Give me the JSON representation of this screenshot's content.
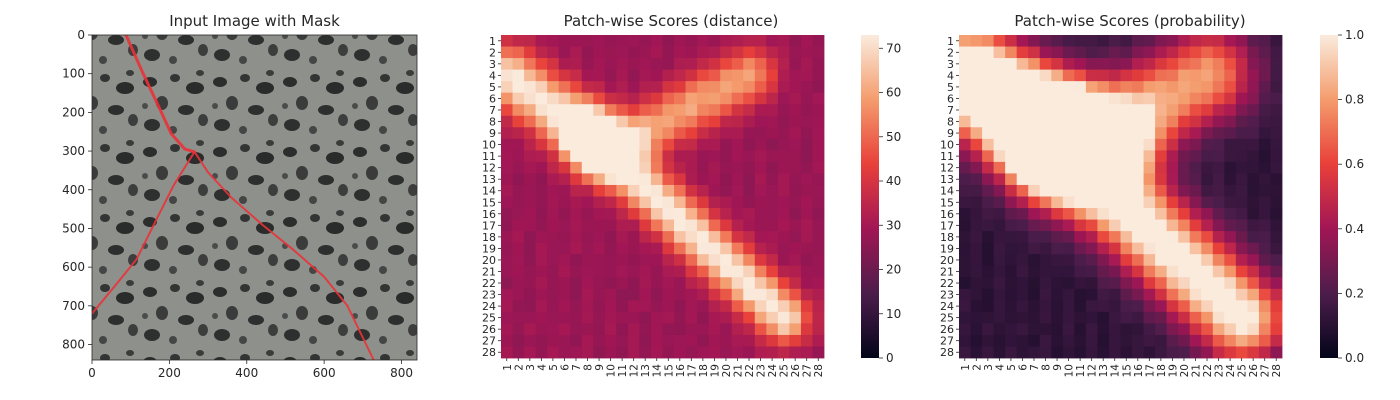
{
  "chart_data": [
    {
      "type": "image",
      "title": "Input Image with Mask",
      "x_ticks": [
        0,
        200,
        400,
        600,
        800
      ],
      "y_ticks": [
        0,
        100,
        200,
        300,
        400,
        500,
        600,
        700,
        800
      ],
      "extent": [
        840,
        840
      ],
      "crack_mask_color": "#e8333a",
      "crack_paths": [
        [
          [
            88,
            0
          ],
          [
            130,
            95
          ],
          [
            170,
            180
          ],
          [
            205,
            255
          ],
          [
            240,
            295
          ],
          [
            265,
            302
          ]
        ],
        [
          [
            265,
            302
          ],
          [
            210,
            390
          ],
          [
            160,
            490
          ],
          [
            115,
            580
          ],
          [
            50,
            660
          ],
          [
            0,
            720
          ]
        ],
        [
          [
            265,
            302
          ],
          [
            300,
            355
          ],
          [
            360,
            420
          ],
          [
            440,
            490
          ],
          [
            520,
            555
          ],
          [
            600,
            625
          ],
          [
            660,
            700
          ],
          [
            728,
            840
          ]
        ]
      ]
    },
    {
      "type": "heatmap",
      "title": "Patch-wise Scores (distance)",
      "x_ticks": [
        "1",
        "2",
        "3",
        "4",
        "5",
        "6",
        "7",
        "8",
        "9",
        "10",
        "11",
        "12",
        "13",
        "14",
        "15",
        "16",
        "17",
        "18",
        "19",
        "20",
        "21",
        "22",
        "23",
        "24",
        "25",
        "26",
        "27",
        "28"
      ],
      "y_ticks": [
        "1",
        "2",
        "3",
        "4",
        "5",
        "6",
        "7",
        "8",
        "9",
        "10",
        "11",
        "12",
        "13",
        "14",
        "15",
        "16",
        "17",
        "18",
        "19",
        "20",
        "21",
        "22",
        "23",
        "24",
        "25",
        "26",
        "27",
        "28"
      ],
      "colorbar": {
        "min": 0,
        "max": 73,
        "ticks": [
          0,
          10,
          20,
          30,
          40,
          50,
          60,
          70
        ]
      },
      "colormap": "rocket",
      "base_value": 28,
      "features": [
        {
          "from": [
            1,
            4
          ],
          "to": [
            8,
            9
          ],
          "peak": 45,
          "width": 1.8
        },
        {
          "from": [
            8,
            9
          ],
          "to": [
            25,
            25
          ],
          "peak": 46,
          "width": 1.5
        },
        {
          "from": [
            9,
            11
          ],
          "to": [
            22,
            4
          ],
          "peak": 32,
          "width": 1.6
        },
        {
          "from": [
            9,
            10
          ],
          "to": [
            12,
            10
          ],
          "peak": 10,
          "width": 1.2
        }
      ]
    },
    {
      "type": "heatmap",
      "title": "Patch-wise Scores (probability)",
      "x_ticks": [
        "1",
        "2",
        "3",
        "4",
        "5",
        "6",
        "7",
        "8",
        "9",
        "10",
        "11",
        "12",
        "13",
        "14",
        "15",
        "16",
        "17",
        "18",
        "19",
        "20",
        "21",
        "22",
        "23",
        "24",
        "25",
        "26",
        "27",
        "28"
      ],
      "y_ticks": [
        "1",
        "2",
        "3",
        "4",
        "5",
        "6",
        "7",
        "8",
        "9",
        "10",
        "11",
        "12",
        "13",
        "14",
        "15",
        "16",
        "17",
        "18",
        "19",
        "20",
        "21",
        "22",
        "23",
        "24",
        "25",
        "26",
        "27",
        "28"
      ],
      "colorbar": {
        "min": 0.0,
        "max": 1.0,
        "ticks": [
          "0.0",
          "0.2",
          "0.4",
          "0.6",
          "0.8",
          "1.0"
        ]
      },
      "colormap": "rocket",
      "base_value": 0.12,
      "features": [
        {
          "from": [
            1,
            4
          ],
          "to": [
            8,
            9
          ],
          "peak": 0.95,
          "width": 3.0
        },
        {
          "from": [
            8,
            9
          ],
          "to": [
            25,
            25
          ],
          "peak": 0.95,
          "width": 2.6
        },
        {
          "from": [
            9,
            11
          ],
          "to": [
            22,
            4
          ],
          "peak": 0.7,
          "width": 2.8
        },
        {
          "from": [
            3,
            5
          ],
          "to": [
            14,
            10
          ],
          "peak": 0.6,
          "width": 2.5
        }
      ]
    }
  ]
}
